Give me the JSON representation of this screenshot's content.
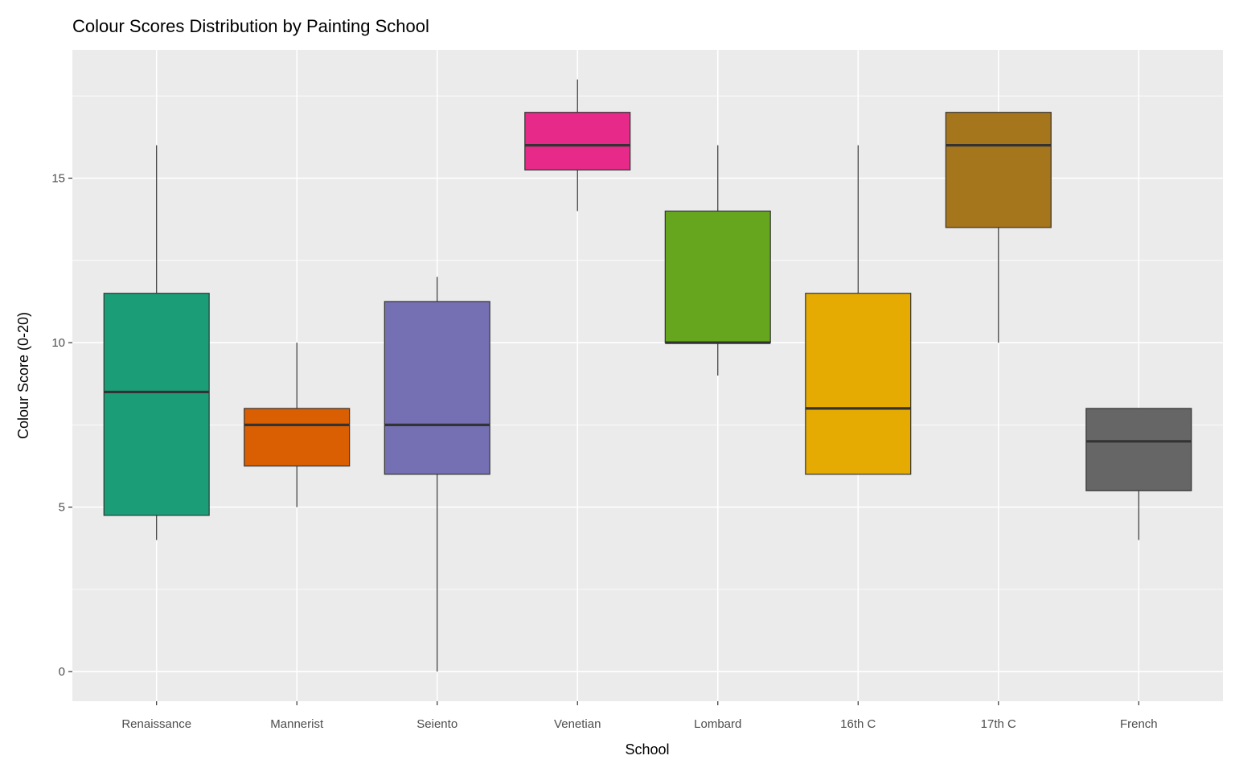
{
  "chart_data": {
    "type": "boxplot",
    "title": "Colour Scores Distribution by Painting School",
    "xlabel": "School",
    "ylabel": "Colour Score (0-20)",
    "ylim": [
      -0.9,
      18.9
    ],
    "yticks": [
      0,
      5,
      10,
      15
    ],
    "grid": true,
    "legend": "none",
    "categories": [
      "Renaissance",
      "Mannerist",
      "Seiento",
      "Venetian",
      "Lombard",
      "16th C",
      "17th C",
      "French"
    ],
    "boxes": [
      {
        "school": "Renaissance",
        "min": 4,
        "q1": 4.75,
        "median": 8.5,
        "q3": 11.5,
        "max": 16,
        "color": "#1B9E77"
      },
      {
        "school": "Mannerist",
        "min": 5,
        "q1": 6.25,
        "median": 7.5,
        "q3": 8,
        "max": 10,
        "color": "#D95F02"
      },
      {
        "school": "Seiento",
        "min": 0,
        "q1": 6,
        "median": 7.5,
        "q3": 11.25,
        "max": 12,
        "color": "#7570B3"
      },
      {
        "school": "Venetian",
        "min": 14,
        "q1": 15.25,
        "median": 16,
        "q3": 17,
        "max": 18,
        "color": "#E7298A"
      },
      {
        "school": "Lombard",
        "min": 9,
        "q1": 10,
        "median": 10,
        "q3": 14,
        "max": 16,
        "color": "#66A61E"
      },
      {
        "school": "16th C",
        "min": 6,
        "q1": 6,
        "median": 8,
        "q3": 11.5,
        "max": 16,
        "color": "#E6AB02"
      },
      {
        "school": "17th C",
        "min": 10,
        "q1": 13.5,
        "median": 16,
        "q3": 17,
        "max": 17,
        "color": "#A6761D"
      },
      {
        "school": "French",
        "min": 4,
        "q1": 5.5,
        "median": 7,
        "q3": 8,
        "max": 8,
        "color": "#666666"
      }
    ]
  }
}
